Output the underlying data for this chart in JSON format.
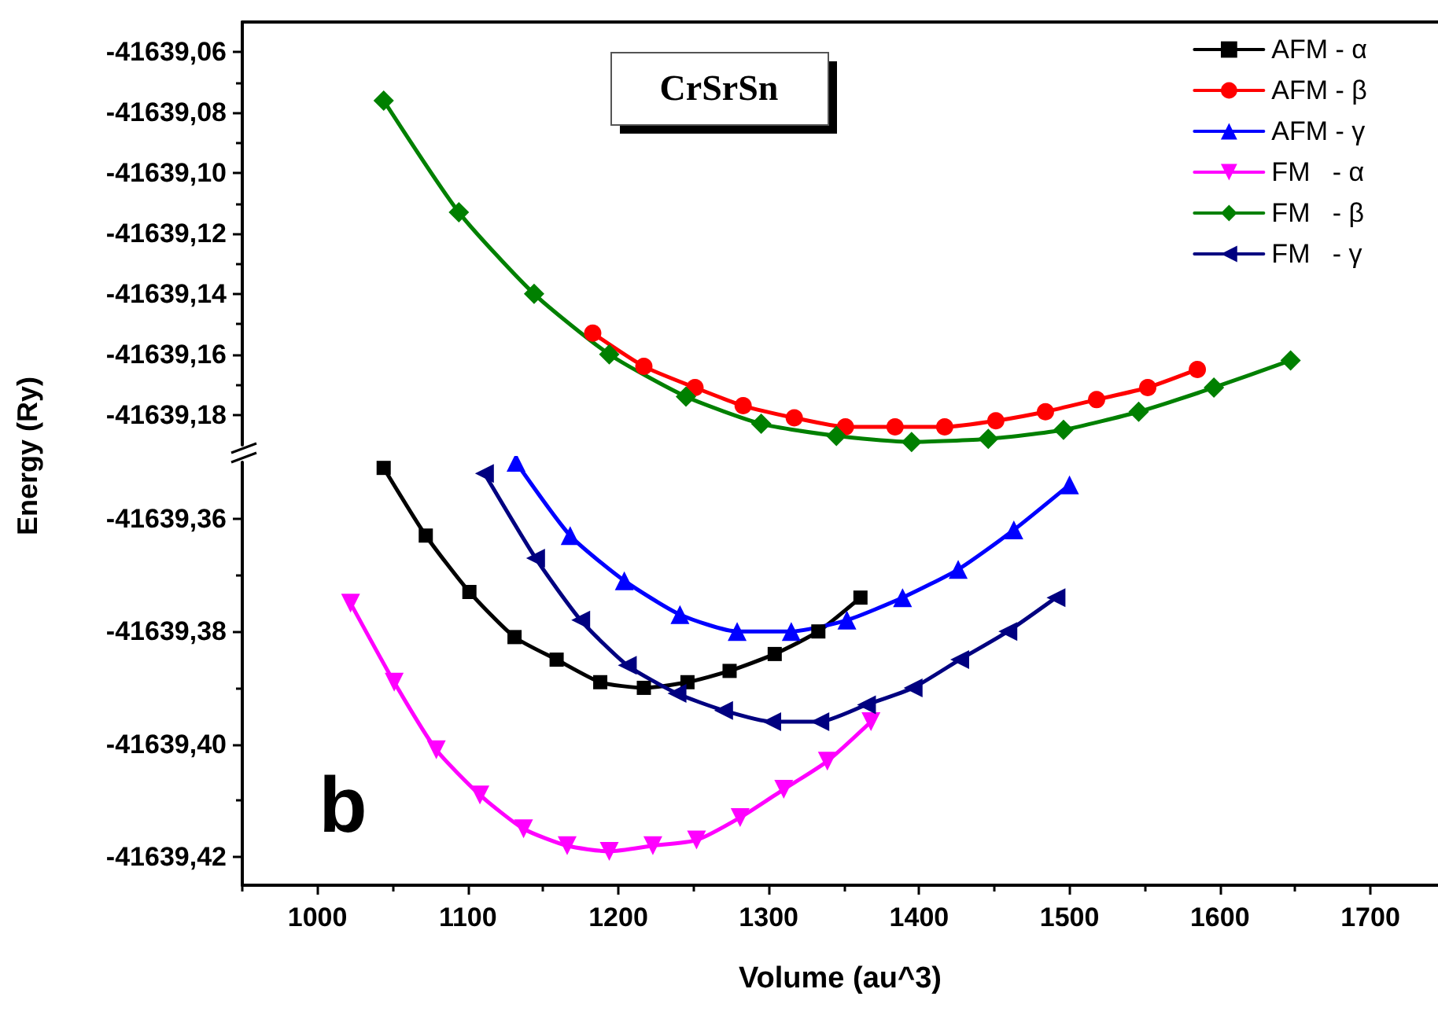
{
  "chart_data": [
    {
      "type": "line",
      "legend": "top right",
      "tick_labels": "y",
      "annotations": [
        "CrSrSn"
      ],
      "xlim": [
        950,
        1745
      ],
      "ylim": [
        -41639.19,
        -41639.05
      ],
      "yticks": [
        {
          "value": -41639.06,
          "label": "-41639,06"
        },
        {
          "value": -41639.08,
          "label": "-41639,08"
        },
        {
          "value": -41639.1,
          "label": "-41639,10"
        },
        {
          "value": -41639.12,
          "label": "-41639,12"
        },
        {
          "value": -41639.14,
          "label": "-41639,14"
        },
        {
          "value": -41639.16,
          "label": "-41639,16"
        },
        {
          "value": -41639.18,
          "label": "-41639,18"
        },
        {
          "value": -41639.07,
          "label": null
        },
        {
          "value": -41639.09,
          "label": null
        },
        {
          "value": -41639.11,
          "label": null
        },
        {
          "value": -41639.13,
          "label": null
        },
        {
          "value": -41639.15,
          "label": null
        },
        {
          "value": -41639.17,
          "label": null
        }
      ],
      "series": [
        {
          "name": "AFM - α",
          "color": "#000000",
          "marker": "square"
        },
        {
          "name": "AFM - β",
          "color": "#ff0000",
          "marker": "circle",
          "x": [
            1183,
            1217,
            1251,
            1283,
            1317,
            1351,
            1384,
            1417,
            1451,
            1484,
            1518,
            1552,
            1585
          ],
          "values": [
            -41639.153,
            -41639.164,
            -41639.171,
            -41639.177,
            -41639.181,
            -41639.184,
            -41639.184,
            -41639.184,
            -41639.182,
            -41639.179,
            -41639.175,
            -41639.171,
            -41639.165
          ]
        },
        {
          "name": "AFM - γ",
          "color": "#0000ff",
          "marker": "triangle"
        },
        {
          "name": "FM   - α",
          "color": "#ff00ff",
          "marker": "triangle-down"
        },
        {
          "name": "FM   - β",
          "color": "#008000",
          "marker": "diamond",
          "x": [
            1044,
            1094,
            1144,
            1194,
            1245,
            1295,
            1345,
            1395,
            1446,
            1496,
            1546,
            1596,
            1647
          ],
          "values": [
            -41639.076,
            -41639.113,
            -41639.14,
            -41639.16,
            -41639.174,
            -41639.183,
            -41639.187,
            -41639.189,
            -41639.188,
            -41639.185,
            -41639.179,
            -41639.171,
            -41639.162
          ]
        },
        {
          "name": "FM   - γ",
          "color": "#000080",
          "marker": "triangle-left"
        }
      ]
    },
    {
      "type": "line",
      "xlabel": "Volume (au^3)",
      "ylabel": "Energy (Ry)",
      "annotations": [
        "b"
      ],
      "xlim": [
        950,
        1745
      ],
      "ylim": [
        -41639.425,
        -41639.35
      ],
      "xticks": [
        1000,
        1100,
        1200,
        1300,
        1400,
        1500,
        1600,
        1700,
        {
          "value": 950,
          "label": null
        },
        {
          "value": 1050,
          "label": null
        },
        {
          "value": 1150,
          "label": null
        },
        {
          "value": 1250,
          "label": null
        },
        {
          "value": 1350,
          "label": null
        },
        {
          "value": 1450,
          "label": null
        },
        {
          "value": 1550,
          "label": null
        },
        {
          "value": 1650,
          "label": null
        }
      ],
      "yticks": [
        {
          "value": -41639.36,
          "label": "-41639,36"
        },
        {
          "value": -41639.38,
          "label": "-41639,38"
        },
        {
          "value": -41639.4,
          "label": "-41639,40"
        },
        {
          "value": -41639.42,
          "label": "-41639,42"
        },
        {
          "value": -41639.37,
          "label": null
        },
        {
          "value": -41639.39,
          "label": null
        },
        {
          "value": -41639.41,
          "label": null
        }
      ],
      "series": [
        {
          "color": "#000000",
          "marker": "square",
          "x": [
            1044,
            1072,
            1101,
            1131,
            1159,
            1188,
            1217,
            1246,
            1274,
            1304,
            1333,
            1361
          ],
          "values": [
            -41639.351,
            -41639.363,
            -41639.373,
            -41639.381,
            -41639.385,
            -41639.389,
            -41639.39,
            -41639.389,
            -41639.387,
            -41639.384,
            -41639.38,
            -41639.374
          ]
        },
        {
          "color": "#0000ff",
          "marker": "triangle",
          "x": [
            1132,
            1168,
            1204,
            1241,
            1279,
            1315,
            1352,
            1389,
            1426,
            1463,
            1500
          ],
          "values": [
            -41639.35,
            -41639.363,
            -41639.371,
            -41639.377,
            -41639.38,
            -41639.38,
            -41639.378,
            -41639.374,
            -41639.369,
            -41639.362,
            -41639.354
          ]
        },
        {
          "color": "#ff00ff",
          "marker": "triangle-down",
          "x": [
            1022,
            1051,
            1079,
            1108,
            1137,
            1166,
            1194,
            1223,
            1252,
            1281,
            1310,
            1339,
            1368
          ],
          "values": [
            -41639.375,
            -41639.389,
            -41639.401,
            -41639.409,
            -41639.415,
            -41639.418,
            -41639.419,
            -41639.418,
            -41639.417,
            -41639.413,
            -41639.408,
            -41639.403,
            -41639.396
          ]
        },
        {
          "color": "#000080",
          "marker": "triangle-left",
          "x": [
            1111,
            1145,
            1175,
            1206,
            1239,
            1270,
            1302,
            1334,
            1365,
            1396,
            1427,
            1459,
            1491
          ],
          "values": [
            -41639.352,
            -41639.367,
            -41639.378,
            -41639.386,
            -41639.391,
            -41639.394,
            -41639.396,
            -41639.396,
            -41639.393,
            -41639.39,
            -41639.385,
            -41639.38,
            -41639.374
          ]
        }
      ]
    }
  ]
}
